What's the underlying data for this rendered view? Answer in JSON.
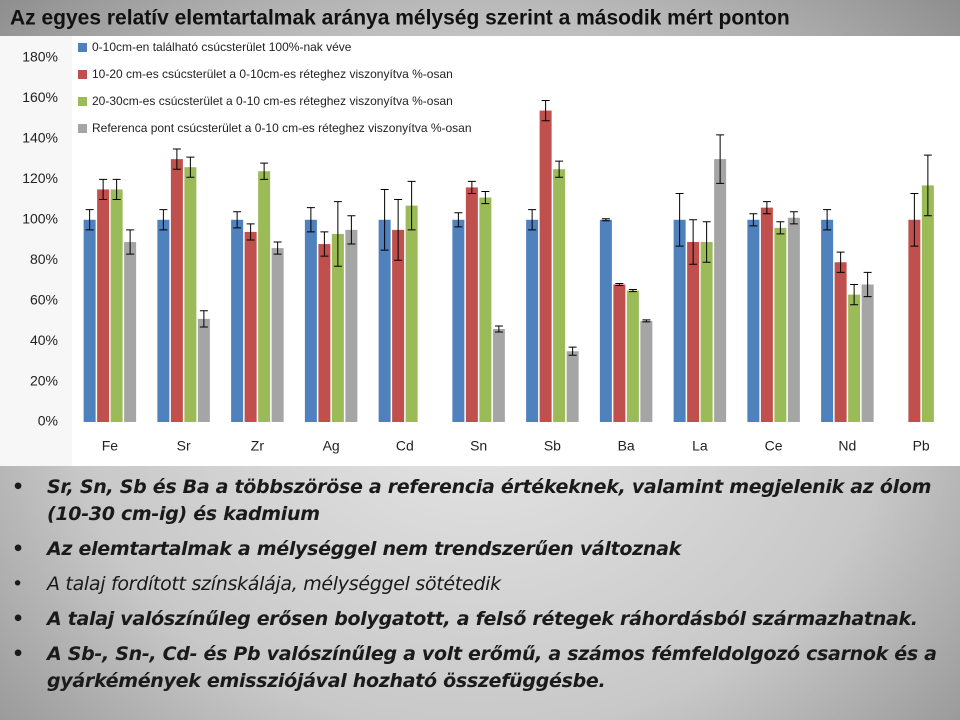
{
  "chart_data": {
    "type": "bar",
    "title": "Az egyes relatív elemtartalmak aránya mélység szerint a második mért ponton",
    "categories": [
      "Fe",
      "Sr",
      "Zr",
      "Ag",
      "Cd",
      "Sn",
      "Sb",
      "Ba",
      "La",
      "Ce",
      "Nd",
      "Pb"
    ],
    "series": [
      {
        "name": "0-10cm-en található csúcsterület 100%-nak véve",
        "color": "#4f81bd",
        "values": [
          100,
          100,
          100,
          100,
          100,
          100,
          100,
          100,
          100,
          100,
          100,
          null
        ],
        "errors": [
          5,
          5,
          4,
          6,
          15,
          3.5,
          5,
          0.5,
          13,
          3,
          5,
          null
        ]
      },
      {
        "name": "10-20 cm-es csúcsterület a 0-10cm-es réteghez viszonyítva %-osan",
        "color": "#c0504d",
        "values": [
          115,
          130,
          94,
          88,
          95,
          116,
          154,
          68,
          89,
          106,
          79,
          100
        ],
        "errors": [
          5,
          5,
          4,
          6,
          15,
          3,
          5,
          0.5,
          11,
          3,
          5,
          13
        ]
      },
      {
        "name": "20-30cm-es csúcsterület a 0-10 cm-es réteghez viszonyítva %-osan",
        "color": "#9bbb59",
        "values": [
          115,
          126,
          124,
          93,
          107,
          111,
          125,
          65,
          89,
          96,
          63,
          117
        ],
        "errors": [
          5,
          5,
          4,
          16,
          12,
          3,
          4,
          0.5,
          10,
          3,
          5,
          15
        ]
      },
      {
        "name": "Referenca pont csúcsterület a 0-10 cm-es réteghez viszonyítva %-osan",
        "color": "#a5a5a5",
        "values": [
          89,
          51,
          86,
          95,
          null,
          46,
          35,
          50,
          130,
          101,
          68,
          null
        ],
        "errors": [
          6,
          4,
          3,
          7,
          null,
          1.5,
          2,
          0.5,
          12,
          3,
          6,
          null
        ]
      }
    ],
    "ylim": [
      0,
      180
    ],
    "yticks": [
      {
        "value": 0,
        "label": "0%"
      },
      {
        "value": 20,
        "label": "20%"
      },
      {
        "value": 40,
        "label": "40%"
      },
      {
        "value": 60,
        "label": "60%"
      },
      {
        "value": 80,
        "label": "80%"
      },
      {
        "value": 100,
        "label": "100%"
      },
      {
        "value": 120,
        "label": "120%"
      },
      {
        "value": 140,
        "label": "140%"
      },
      {
        "value": 160,
        "label": "160%"
      },
      {
        "value": 180,
        "label": "180%"
      }
    ],
    "grid": false,
    "legend": "top-left"
  },
  "bullets": [
    "Sr, Sn, Sb és Ba a többszöröse a referencia értékeknek, valamint megjelenik az ólom (10-30 cm-ig) és kadmium",
    "Az elemtartalmak a mélységgel nem trendszerűen változnak",
    "A talaj fordított színskálája, mélységgel sötétedik",
    "A talaj valószínűleg erősen bolygatott, a felső rétegek ráhordásból származhatnak.",
    "A Sb-, Sn-, Cd- és Pb valószínűleg a volt erőmű, a számos fémfeldolgozó csarnok és a gyárkémények emissziójával hozható összefüggésbe."
  ]
}
